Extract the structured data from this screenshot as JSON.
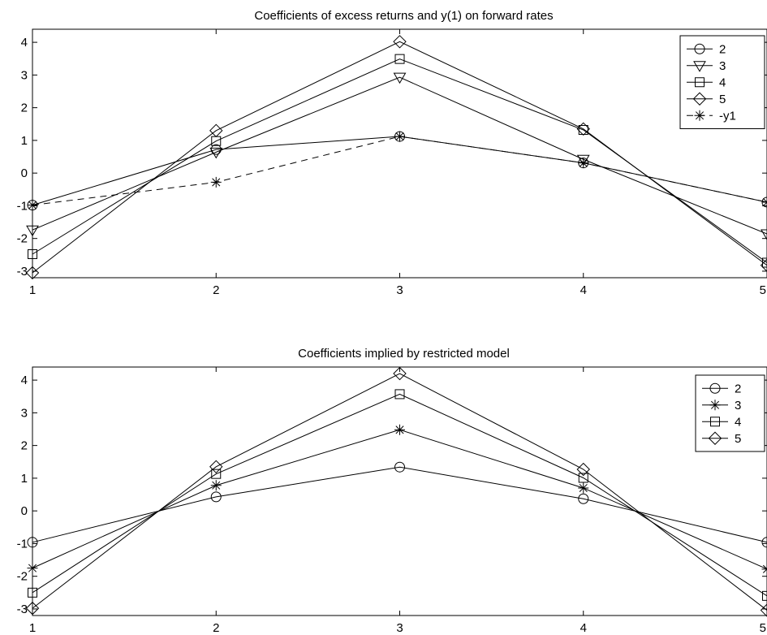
{
  "chart_data": [
    {
      "type": "line",
      "title": "Coefficients of excess returns and y(1) on forward rates",
      "xlabel": "",
      "ylabel": "",
      "x": [
        1,
        2,
        3,
        4,
        5
      ],
      "x_tick_labels": [
        "1",
        "2",
        "3",
        "4",
        "5"
      ],
      "xlim": [
        1,
        5
      ],
      "ylim": [
        -3.2,
        4.4
      ],
      "y_ticks": [
        -3,
        -2,
        -1,
        0,
        1,
        2,
        3,
        4
      ],
      "y_tick_labels": [
        "-3",
        "-2",
        "-1",
        "0",
        "1",
        "2",
        "3",
        "4"
      ],
      "grid": false,
      "legend_position": "top-right",
      "series": [
        {
          "name": "2",
          "marker": "circle",
          "line_style": "solid",
          "values": [
            -0.98,
            0.72,
            1.12,
            0.31,
            -0.89
          ]
        },
        {
          "name": "3",
          "marker": "triangle-down",
          "line_style": "solid",
          "values": [
            -1.74,
            0.64,
            2.93,
            0.42,
            -1.86
          ]
        },
        {
          "name": "4",
          "marker": "square",
          "line_style": "solid",
          "values": [
            -2.48,
            0.98,
            3.49,
            1.32,
            -2.74
          ]
        },
        {
          "name": "5",
          "marker": "diamond",
          "line_style": "solid",
          "values": [
            -3.05,
            1.3,
            4.02,
            1.35,
            -2.82
          ]
        },
        {
          "name": "-y1",
          "marker": "asterisk",
          "line_style": "dashed",
          "values": [
            -0.98,
            -0.28,
            1.12,
            0.31,
            -0.89
          ]
        }
      ]
    },
    {
      "type": "line",
      "title": "Coefficients implied by restricted model",
      "xlabel": "",
      "ylabel": "",
      "x": [
        1,
        2,
        3,
        4,
        5
      ],
      "x_tick_labels": [
        "1",
        "2",
        "3",
        "4",
        "5"
      ],
      "xlim": [
        1,
        5
      ],
      "ylim": [
        -3.2,
        4.4
      ],
      "y_ticks": [
        -3,
        -2,
        -1,
        0,
        1,
        2,
        3,
        4
      ],
      "y_tick_labels": [
        "-3",
        "-2",
        "-1",
        "0",
        "1",
        "2",
        "3",
        "4"
      ],
      "grid": false,
      "legend_position": "top-right",
      "series": [
        {
          "name": "2",
          "marker": "circle",
          "line_style": "solid",
          "values": [
            -0.96,
            0.43,
            1.34,
            0.37,
            -0.96
          ]
        },
        {
          "name": "3",
          "marker": "asterisk",
          "line_style": "solid",
          "values": [
            -1.75,
            0.78,
            2.48,
            0.7,
            -1.78
          ]
        },
        {
          "name": "4",
          "marker": "square",
          "line_style": "solid",
          "values": [
            -2.5,
            1.13,
            3.57,
            1.01,
            -2.6
          ]
        },
        {
          "name": "5",
          "marker": "diamond",
          "line_style": "solid",
          "values": [
            -2.98,
            1.35,
            4.2,
            1.27,
            -3.04
          ]
        }
      ]
    }
  ],
  "colors": {
    "line": "#000000",
    "background": "#ffffff"
  }
}
